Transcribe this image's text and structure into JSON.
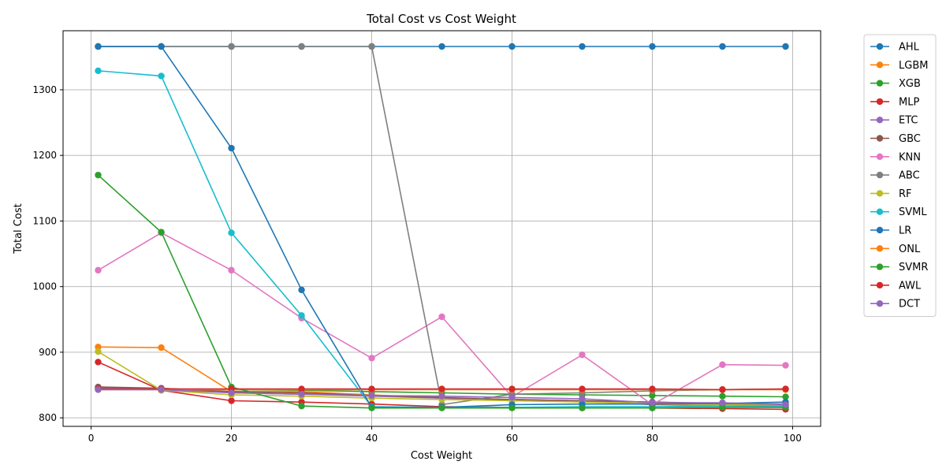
{
  "chart_data": {
    "type": "line",
    "title": "Total Cost vs Cost Weight",
    "xlabel": "Cost Weight",
    "ylabel": "Total Cost",
    "xlim": [
      -4,
      104
    ],
    "ylim": [
      787,
      1390
    ],
    "xticks": [
      0,
      20,
      40,
      60,
      80,
      100
    ],
    "yticks": [
      800,
      900,
      1000,
      1100,
      1200,
      1300
    ],
    "grid": true,
    "legend_position": "outside-right",
    "x": [
      1,
      10,
      20,
      30,
      40,
      50,
      60,
      70,
      80,
      90,
      99
    ],
    "series": [
      {
        "name": "AHL",
        "color": "#1f77b4",
        "values": [
          1366,
          1366,
          1366,
          1366,
          1366,
          1366,
          1366,
          1366,
          1366,
          1366,
          1366
        ]
      },
      {
        "name": "LGBM",
        "color": "#ff7f0e",
        "values": [
          908,
          907,
          840,
          840,
          835,
          830,
          827,
          825,
          820,
          818,
          816
        ]
      },
      {
        "name": "XGB",
        "color": "#2ca02c",
        "values": [
          845,
          844,
          843,
          842,
          840,
          838,
          836,
          835,
          834,
          833,
          832
        ]
      },
      {
        "name": "MLP",
        "color": "#d62728",
        "values": [
          885,
          842,
          826,
          824,
          821,
          817,
          816,
          815,
          815,
          814,
          813
        ]
      },
      {
        "name": "ETC",
        "color": "#9467bd",
        "values": [
          846,
          845,
          838,
          836,
          833,
          830,
          828,
          826,
          824,
          822,
          821
        ]
      },
      {
        "name": "GBC",
        "color": "#8c564b",
        "values": [
          847,
          845,
          840,
          838,
          834,
          831,
          828,
          826,
          824,
          821,
          819
        ]
      },
      {
        "name": "KNN",
        "color": "#e377c2",
        "values": [
          1025,
          1082,
          1025,
          952,
          891,
          954,
          832,
          896,
          820,
          881,
          880
        ]
      },
      {
        "name": "ABC",
        "color": "#7f7f7f",
        "values": [
          1366,
          1366,
          1366,
          1366,
          1366,
          820,
          836,
          838,
          841,
          843,
          844
        ]
      },
      {
        "name": "RF",
        "color": "#bcbd22",
        "values": [
          901,
          842,
          835,
          833,
          830,
          828,
          826,
          824,
          822,
          820,
          819
        ]
      },
      {
        "name": "SVML",
        "color": "#17becf",
        "values": [
          1329,
          1321,
          1082,
          956,
          817,
          816,
          816,
          817,
          817,
          818,
          818
        ]
      },
      {
        "name": "LR",
        "color": "#1f77b4",
        "values": [
          1366,
          1366,
          1211,
          995,
          816,
          816,
          820,
          821,
          821,
          822,
          824
        ]
      },
      {
        "name": "ONL",
        "color": "#ff7f0e",
        "values": [
          843,
          843,
          843,
          843,
          843,
          843,
          843,
          843,
          843,
          843,
          843
        ]
      },
      {
        "name": "SVMR",
        "color": "#2ca02c",
        "values": [
          1170,
          1083,
          847,
          818,
          815,
          815,
          815,
          815,
          815,
          816,
          816
        ]
      },
      {
        "name": "AWL",
        "color": "#d62728",
        "values": [
          844,
          844,
          844,
          844,
          844,
          844,
          844,
          844,
          844,
          843,
          844
        ]
      },
      {
        "name": "DCT",
        "color": "#9467bd",
        "values": [
          843,
          843,
          838,
          836,
          834,
          833,
          831,
          829,
          823,
          823,
          820
        ]
      }
    ]
  }
}
